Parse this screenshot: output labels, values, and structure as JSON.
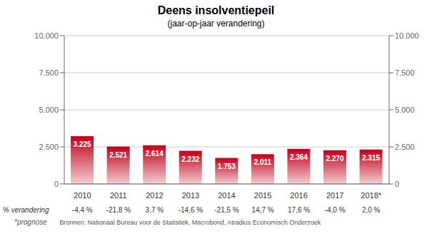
{
  "chart_data": {
    "type": "bar",
    "title": "Deens insolventiepeil",
    "subtitle": "(jaar-op-jaar verandering)",
    "categories": [
      "2010",
      "2011",
      "2012",
      "2013",
      "2014",
      "2015",
      "2016",
      "2017",
      "2018*"
    ],
    "values": [
      3225,
      2521,
      2614,
      2232,
      1753,
      2011,
      2364,
      2270,
      2315
    ],
    "value_labels": [
      "3.225",
      "2.521",
      "2.614",
      "2.232",
      "1.753",
      "2.011",
      "2.364",
      "2.270",
      "2.315"
    ],
    "data_labels": true,
    "color": "#c0001a",
    "pct_label": "% verandering",
    "pct_changes": [
      "-4,4 %",
      "-21,8 %",
      "3,7 %",
      "-14,6 %",
      "-21,5 %",
      "14,7 %",
      "17,6 %",
      "-4,0 %",
      "2,0 %"
    ],
    "footnotes": [
      "*prognose",
      "Bronnen: Nationaal Bureau voor de Statistiek, Macrobond, Atradius Economisch Onderzoek"
    ],
    "ylim": [
      0,
      10000
    ],
    "yticks": [
      0,
      {
        "value": 2500,
        "label": "2.500"
      },
      {
        "value": 5000,
        "label": "5.000"
      },
      {
        "value": 7500,
        "label": "7.500"
      },
      {
        "value": 10000,
        "label": "10.000"
      }
    ],
    "y2lim": [
      0,
      10000
    ],
    "y2ticks": [
      0,
      {
        "value": 2500,
        "label": "2.500"
      },
      {
        "value": 5000,
        "label": "5.000"
      },
      {
        "value": 7500,
        "label": "7.500"
      },
      {
        "value": 10000,
        "label": "10.000"
      }
    ],
    "grid": true
  }
}
